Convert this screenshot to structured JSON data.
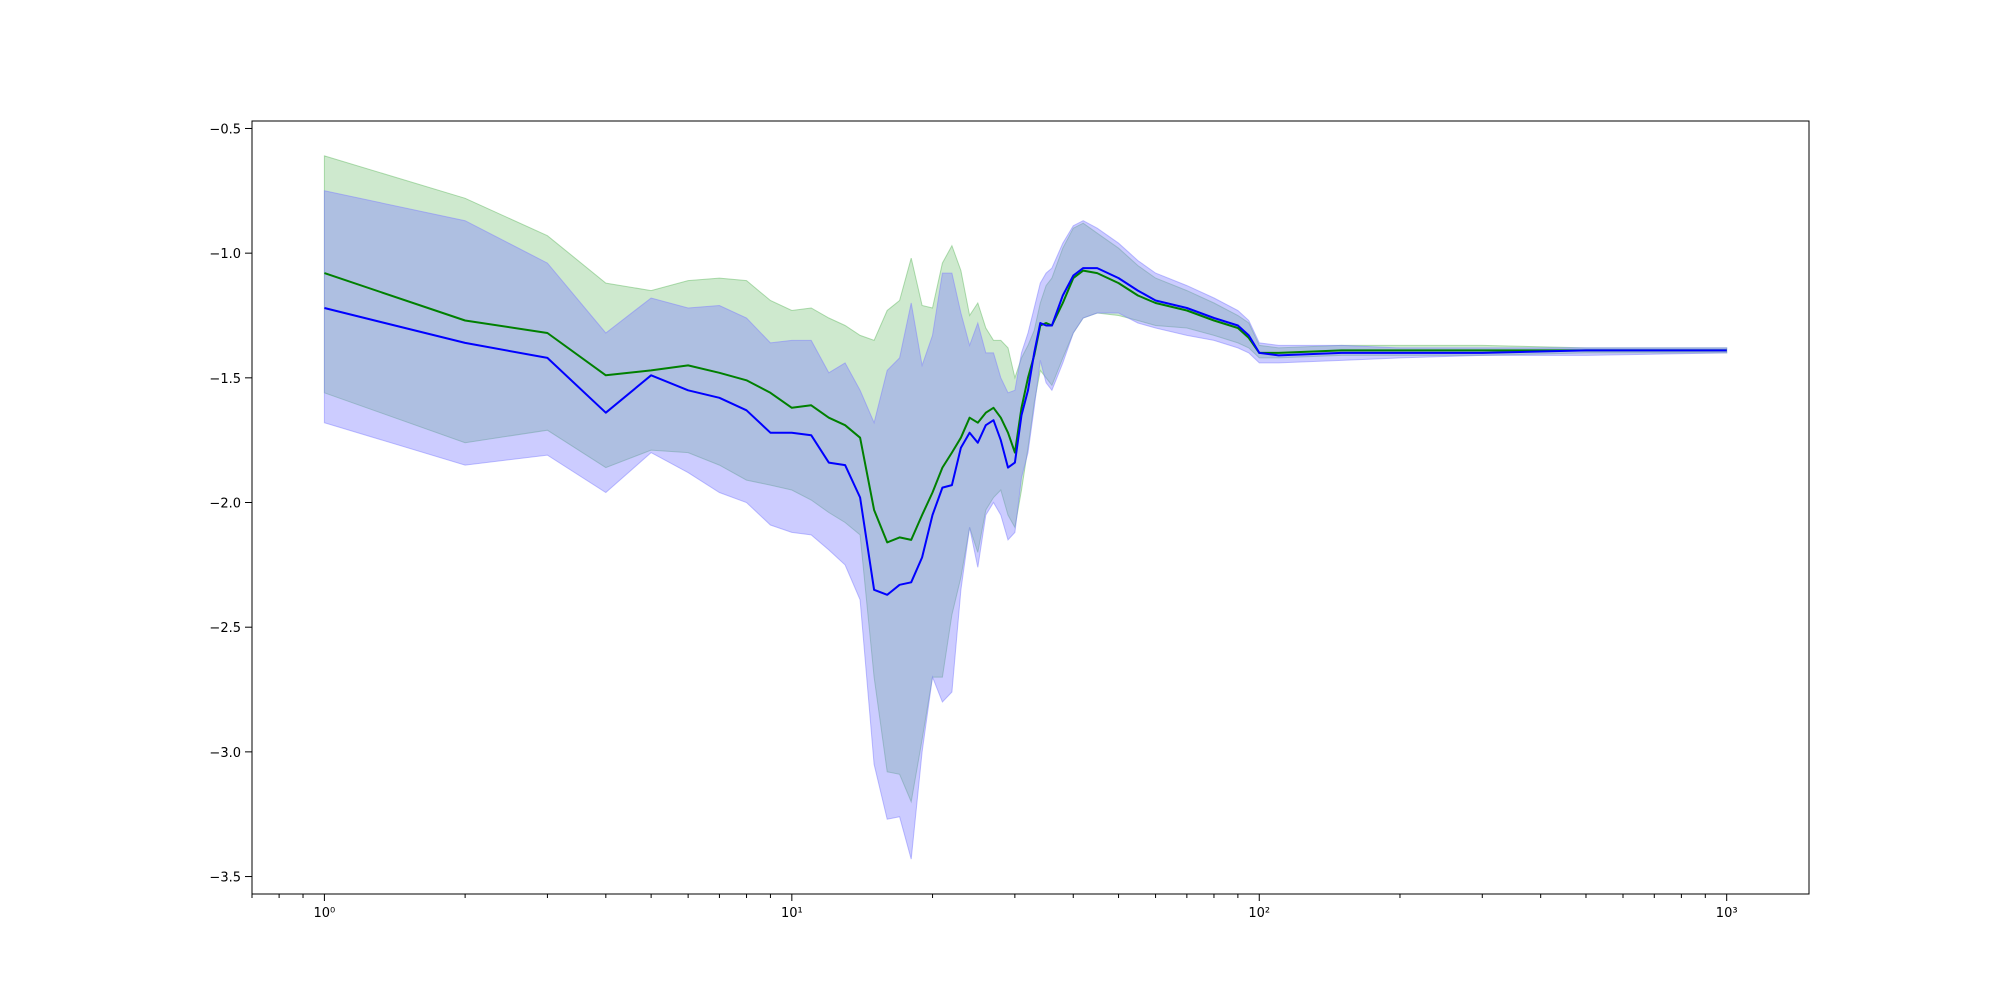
{
  "chart_data": {
    "type": "line",
    "x_scale": "log",
    "xlim": [
      0.7,
      1500
    ],
    "ylim": [
      -3.57,
      -0.47
    ],
    "grid": false,
    "legend": "none",
    "x_ticks": [
      {
        "value": 1,
        "label": "10⁰"
      },
      {
        "value": 10,
        "label": "10¹"
      },
      {
        "value": 100,
        "label": "10²"
      },
      {
        "value": 1000,
        "label": "10³"
      }
    ],
    "y_ticks": [
      {
        "value": -0.5,
        "label": "−0.5"
      },
      {
        "value": -1.0,
        "label": "−1.0"
      },
      {
        "value": -1.5,
        "label": "−1.5"
      },
      {
        "value": -2.0,
        "label": "−2.0"
      },
      {
        "value": -2.5,
        "label": "−2.5"
      },
      {
        "value": -3.0,
        "label": "−3.0"
      },
      {
        "value": -3.5,
        "label": "−3.5"
      }
    ],
    "series": [
      {
        "color": "#008000",
        "band_color": "#66bb66",
        "x": [
          1,
          2,
          3,
          4,
          5,
          6,
          7,
          8,
          9,
          10,
          11,
          12,
          13,
          14,
          15,
          16,
          17,
          18,
          19,
          20,
          21,
          22,
          23,
          24,
          25,
          26,
          27,
          28,
          29,
          30,
          31,
          32,
          33,
          34,
          35,
          36,
          38,
          40,
          42,
          45,
          50,
          55,
          60,
          70,
          80,
          90,
          95,
          100,
          110,
          150,
          200,
          300,
          500,
          1000
        ],
        "mean": [
          -1.08,
          -1.27,
          -1.32,
          -1.49,
          -1.47,
          -1.45,
          -1.48,
          -1.51,
          -1.56,
          -1.62,
          -1.61,
          -1.66,
          -1.69,
          -1.74,
          -2.03,
          -2.16,
          -2.14,
          -2.15,
          -2.05,
          -1.96,
          -1.86,
          -1.8,
          -1.74,
          -1.66,
          -1.68,
          -1.64,
          -1.62,
          -1.66,
          -1.72,
          -1.8,
          -1.62,
          -1.5,
          -1.41,
          -1.29,
          -1.28,
          -1.29,
          -1.2,
          -1.1,
          -1.07,
          -1.08,
          -1.12,
          -1.17,
          -1.2,
          -1.23,
          -1.27,
          -1.3,
          -1.34,
          -1.4,
          -1.4,
          -1.39,
          -1.39,
          -1.39,
          -1.39,
          -1.39
        ],
        "upper": [
          -0.61,
          -0.78,
          -0.93,
          -1.12,
          -1.15,
          -1.11,
          -1.1,
          -1.11,
          -1.19,
          -1.23,
          -1.22,
          -1.26,
          -1.29,
          -1.33,
          -1.35,
          -1.23,
          -1.19,
          -1.02,
          -1.21,
          -1.22,
          -1.04,
          -0.97,
          -1.07,
          -1.25,
          -1.2,
          -1.3,
          -1.35,
          -1.35,
          -1.38,
          -1.5,
          -1.42,
          -1.37,
          -1.31,
          -1.2,
          -1.13,
          -1.1,
          -0.98,
          -0.9,
          -0.88,
          -0.92,
          -0.98,
          -1.05,
          -1.1,
          -1.15,
          -1.2,
          -1.25,
          -1.28,
          -1.37,
          -1.38,
          -1.37,
          -1.37,
          -1.37,
          -1.38,
          -1.38
        ],
        "lower": [
          -1.56,
          -1.76,
          -1.71,
          -1.86,
          -1.79,
          -1.8,
          -1.85,
          -1.91,
          -1.93,
          -1.95,
          -1.99,
          -2.04,
          -2.08,
          -2.13,
          -2.7,
          -3.08,
          -3.09,
          -3.2,
          -2.95,
          -2.7,
          -2.7,
          -2.45,
          -2.3,
          -2.1,
          -2.2,
          -2.03,
          -1.98,
          -1.95,
          -2.05,
          -2.1,
          -1.95,
          -1.78,
          -1.6,
          -1.47,
          -1.5,
          -1.53,
          -1.42,
          -1.32,
          -1.26,
          -1.24,
          -1.25,
          -1.27,
          -1.29,
          -1.3,
          -1.33,
          -1.36,
          -1.38,
          -1.42,
          -1.42,
          -1.41,
          -1.41,
          -1.41,
          -1.4,
          -1.4
        ]
      },
      {
        "color": "#0000ff",
        "band_color": "#8080ff",
        "x": [
          1,
          2,
          3,
          4,
          5,
          6,
          7,
          8,
          9,
          10,
          11,
          12,
          13,
          14,
          15,
          16,
          17,
          18,
          19,
          20,
          21,
          22,
          23,
          24,
          25,
          26,
          27,
          28,
          29,
          30,
          31,
          32,
          33,
          34,
          35,
          36,
          38,
          40,
          42,
          45,
          50,
          55,
          60,
          70,
          80,
          90,
          95,
          100,
          110,
          150,
          200,
          300,
          500,
          1000
        ],
        "mean": [
          -1.22,
          -1.36,
          -1.42,
          -1.64,
          -1.49,
          -1.55,
          -1.58,
          -1.63,
          -1.72,
          -1.72,
          -1.73,
          -1.84,
          -1.85,
          -1.98,
          -2.35,
          -2.37,
          -2.33,
          -2.32,
          -2.22,
          -2.05,
          -1.94,
          -1.93,
          -1.78,
          -1.72,
          -1.76,
          -1.69,
          -1.67,
          -1.75,
          -1.86,
          -1.84,
          -1.65,
          -1.55,
          -1.4,
          -1.28,
          -1.29,
          -1.29,
          -1.17,
          -1.09,
          -1.06,
          -1.06,
          -1.1,
          -1.15,
          -1.19,
          -1.22,
          -1.26,
          -1.29,
          -1.33,
          -1.4,
          -1.41,
          -1.4,
          -1.4,
          -1.4,
          -1.39,
          -1.39
        ],
        "upper": [
          -0.75,
          -0.87,
          -1.04,
          -1.32,
          -1.18,
          -1.22,
          -1.21,
          -1.26,
          -1.36,
          -1.35,
          -1.35,
          -1.48,
          -1.44,
          -1.55,
          -1.68,
          -1.47,
          -1.42,
          -1.2,
          -1.45,
          -1.33,
          -1.08,
          -1.08,
          -1.24,
          -1.37,
          -1.28,
          -1.4,
          -1.4,
          -1.5,
          -1.56,
          -1.55,
          -1.4,
          -1.32,
          -1.22,
          -1.12,
          -1.08,
          -1.06,
          -0.96,
          -0.89,
          -0.87,
          -0.9,
          -0.96,
          -1.03,
          -1.08,
          -1.13,
          -1.18,
          -1.23,
          -1.27,
          -1.36,
          -1.37,
          -1.37,
          -1.38,
          -1.38,
          -1.38,
          -1.38
        ],
        "lower": [
          -1.68,
          -1.85,
          -1.81,
          -1.96,
          -1.8,
          -1.88,
          -1.96,
          -2.0,
          -2.09,
          -2.12,
          -2.13,
          -2.19,
          -2.25,
          -2.39,
          -3.05,
          -3.27,
          -3.26,
          -3.43,
          -3.0,
          -2.7,
          -2.8,
          -2.76,
          -2.35,
          -2.1,
          -2.26,
          -2.05,
          -2.0,
          -2.05,
          -2.15,
          -2.12,
          -1.9,
          -1.8,
          -1.62,
          -1.43,
          -1.52,
          -1.55,
          -1.44,
          -1.32,
          -1.26,
          -1.24,
          -1.24,
          -1.28,
          -1.3,
          -1.33,
          -1.35,
          -1.38,
          -1.4,
          -1.44,
          -1.44,
          -1.43,
          -1.42,
          -1.41,
          -1.41,
          -1.4
        ]
      }
    ]
  }
}
